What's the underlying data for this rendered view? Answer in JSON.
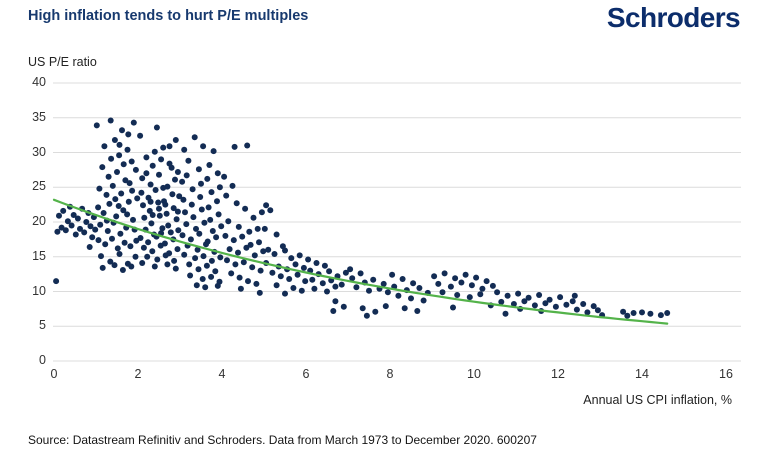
{
  "brand": {
    "logo_text": "Schroders"
  },
  "source_note": "Source: Datastream Refinitiv and Schroders. Data from March 1973 to December 2020. 600207",
  "chart_data": {
    "type": "scatter",
    "title": "High inflation tends to hurt P/E multiples",
    "xlabel": "Annual US CPI inflation, %",
    "ylabel": "US P/E ratio",
    "xlim": [
      0,
      16
    ],
    "ylim": [
      0,
      40
    ],
    "x_ticks": [
      0,
      2,
      4,
      6,
      8,
      10,
      12,
      14,
      16
    ],
    "y_ticks": [
      0,
      5,
      10,
      15,
      20,
      25,
      30,
      35,
      40
    ],
    "grid": "horizontal",
    "grid_color": "#dcdcdc",
    "point_color": "#132c54",
    "trend": {
      "type": "exponential",
      "formula": "y = 23.2 * exp(-0.1 * x)",
      "a": 23.2,
      "b": -0.1,
      "x_start": 0,
      "x_end": 14.6,
      "color": "#54b34a"
    },
    "points": [
      [
        0.05,
        11.5
      ],
      [
        0.08,
        18.6
      ],
      [
        0.12,
        20.9
      ],
      [
        0.18,
        19.2
      ],
      [
        0.22,
        21.6
      ],
      [
        0.28,
        18.8
      ],
      [
        0.33,
        20.1
      ],
      [
        0.38,
        22.2
      ],
      [
        0.42,
        19.5
      ],
      [
        0.47,
        21.0
      ],
      [
        0.52,
        18.2
      ],
      [
        0.57,
        20.5
      ],
      [
        0.62,
        19.0
      ],
      [
        0.67,
        21.9
      ],
      [
        0.72,
        18.5
      ],
      [
        0.77,
        20.0
      ],
      [
        0.82,
        21.3
      ],
      [
        0.87,
        19.4
      ],
      [
        0.91,
        17.8
      ],
      [
        0.95,
        20.7
      ],
      [
        0.98,
        18.9
      ],
      [
        0.85,
        16.4
      ],
      [
        1.02,
        33.9
      ],
      [
        1.35,
        34.6
      ],
      [
        1.62,
        33.2
      ],
      [
        1.9,
        34.3
      ],
      [
        1.2,
        30.9
      ],
      [
        1.45,
        31.8
      ],
      [
        1.55,
        29.6
      ],
      [
        1.75,
        30.4
      ],
      [
        1.85,
        28.7
      ],
      [
        1.15,
        27.9
      ],
      [
        1.3,
        26.5
      ],
      [
        1.5,
        27.2
      ],
      [
        1.7,
        26.0
      ],
      [
        1.95,
        27.5
      ],
      [
        1.08,
        24.8
      ],
      [
        1.25,
        23.9
      ],
      [
        1.4,
        25.2
      ],
      [
        1.6,
        24.1
      ],
      [
        1.8,
        25.6
      ],
      [
        1.98,
        23.4
      ],
      [
        1.05,
        22.1
      ],
      [
        1.18,
        21.3
      ],
      [
        1.32,
        22.6
      ],
      [
        1.48,
        20.8
      ],
      [
        1.65,
        21.7
      ],
      [
        1.78,
        22.9
      ],
      [
        1.88,
        20.3
      ],
      [
        1.1,
        19.6
      ],
      [
        1.28,
        18.7
      ],
      [
        1.42,
        19.9
      ],
      [
        1.58,
        18.3
      ],
      [
        1.72,
        19.2
      ],
      [
        1.92,
        18.9
      ],
      [
        1.06,
        17.4
      ],
      [
        1.22,
        16.8
      ],
      [
        1.38,
        17.6
      ],
      [
        1.52,
        16.2
      ],
      [
        1.68,
        17.0
      ],
      [
        1.82,
        16.5
      ],
      [
        1.96,
        17.3
      ],
      [
        1.12,
        15.1
      ],
      [
        1.34,
        14.3
      ],
      [
        1.56,
        15.4
      ],
      [
        1.76,
        14.0
      ],
      [
        1.94,
        15.0
      ],
      [
        1.16,
        13.4
      ],
      [
        1.44,
        13.8
      ],
      [
        1.64,
        13.1
      ],
      [
        1.84,
        13.6
      ],
      [
        1.26,
        20.2
      ],
      [
        1.54,
        22.3
      ],
      [
        1.74,
        21.1
      ],
      [
        1.86,
        24.5
      ],
      [
        1.46,
        23.3
      ],
      [
        1.66,
        28.3
      ],
      [
        1.36,
        29.1
      ],
      [
        1.56,
        31.1
      ],
      [
        1.77,
        32.6
      ],
      [
        2.05,
        32.4
      ],
      [
        2.45,
        33.6
      ],
      [
        2.6,
        30.7
      ],
      [
        2.9,
        31.8
      ],
      [
        2.2,
        29.3
      ],
      [
        2.35,
        28.1
      ],
      [
        2.55,
        29.0
      ],
      [
        2.75,
        28.4
      ],
      [
        2.95,
        27.2
      ],
      [
        2.1,
        26.3
      ],
      [
        2.3,
        25.4
      ],
      [
        2.5,
        26.8
      ],
      [
        2.7,
        25.1
      ],
      [
        2.88,
        26.1
      ],
      [
        2.08,
        24.2
      ],
      [
        2.25,
        23.5
      ],
      [
        2.42,
        24.6
      ],
      [
        2.62,
        23.0
      ],
      [
        2.82,
        24.0
      ],
      [
        2.98,
        23.7
      ],
      [
        2.12,
        22.4
      ],
      [
        2.28,
        21.6
      ],
      [
        2.48,
        22.8
      ],
      [
        2.68,
        21.2
      ],
      [
        2.85,
        22.0
      ],
      [
        2.15,
        20.6
      ],
      [
        2.32,
        19.8
      ],
      [
        2.52,
        20.9
      ],
      [
        2.72,
        19.5
      ],
      [
        2.92,
        20.4
      ],
      [
        2.18,
        18.9
      ],
      [
        2.38,
        18.2
      ],
      [
        2.58,
        19.1
      ],
      [
        2.78,
        18.5
      ],
      [
        2.96,
        18.8
      ],
      [
        2.06,
        17.7
      ],
      [
        2.24,
        17.1
      ],
      [
        2.44,
        17.9
      ],
      [
        2.64,
        16.9
      ],
      [
        2.84,
        17.5
      ],
      [
        2.14,
        16.3
      ],
      [
        2.34,
        15.8
      ],
      [
        2.54,
        16.6
      ],
      [
        2.74,
        15.5
      ],
      [
        2.94,
        16.1
      ],
      [
        2.22,
        15.0
      ],
      [
        2.46,
        14.6
      ],
      [
        2.66,
        15.2
      ],
      [
        2.86,
        14.4
      ],
      [
        2.1,
        14.1
      ],
      [
        2.4,
        13.6
      ],
      [
        2.7,
        13.9
      ],
      [
        2.9,
        13.3
      ],
      [
        2.5,
        21.9
      ],
      [
        2.3,
        22.9
      ],
      [
        2.6,
        24.9
      ],
      [
        2.8,
        27.8
      ],
      [
        2.2,
        27.0
      ],
      [
        2.4,
        30.1
      ],
      [
        2.75,
        30.9
      ],
      [
        2.55,
        18.4
      ],
      [
        2.35,
        21.0
      ],
      [
        2.65,
        22.5
      ],
      [
        2.95,
        21.5
      ],
      [
        3.35,
        32.2
      ],
      [
        3.55,
        30.9
      ],
      [
        3.8,
        30.2
      ],
      [
        3.1,
        30.4
      ],
      [
        3.2,
        28.8
      ],
      [
        3.45,
        27.6
      ],
      [
        3.7,
        28.2
      ],
      [
        3.9,
        27.0
      ],
      [
        3.05,
        25.8
      ],
      [
        3.3,
        24.7
      ],
      [
        3.5,
        25.5
      ],
      [
        3.75,
        24.3
      ],
      [
        3.95,
        25.0
      ],
      [
        3.08,
        23.2
      ],
      [
        3.28,
        22.5
      ],
      [
        3.48,
        23.6
      ],
      [
        3.68,
        22.1
      ],
      [
        3.88,
        23.0
      ],
      [
        3.12,
        21.4
      ],
      [
        3.32,
        20.7
      ],
      [
        3.52,
        21.8
      ],
      [
        3.72,
        20.3
      ],
      [
        3.92,
        21.1
      ],
      [
        3.15,
        19.7
      ],
      [
        3.38,
        19.0
      ],
      [
        3.58,
        19.9
      ],
      [
        3.78,
        18.7
      ],
      [
        3.98,
        19.4
      ],
      [
        3.06,
        18.1
      ],
      [
        3.26,
        17.5
      ],
      [
        3.46,
        18.3
      ],
      [
        3.66,
        17.2
      ],
      [
        3.86,
        17.8
      ],
      [
        3.18,
        16.6
      ],
      [
        3.42,
        16.0
      ],
      [
        3.62,
        16.8
      ],
      [
        3.82,
        15.7
      ],
      [
        3.1,
        15.3
      ],
      [
        3.36,
        14.8
      ],
      [
        3.56,
        15.1
      ],
      [
        3.76,
        14.4
      ],
      [
        3.96,
        14.9
      ],
      [
        3.22,
        13.9
      ],
      [
        3.44,
        13.2
      ],
      [
        3.64,
        13.7
      ],
      [
        3.84,
        12.9
      ],
      [
        3.24,
        12.3
      ],
      [
        3.54,
        11.8
      ],
      [
        3.74,
        12.1
      ],
      [
        3.94,
        11.4
      ],
      [
        3.4,
        10.9
      ],
      [
        3.6,
        10.6
      ],
      [
        3.9,
        10.8
      ],
      [
        3.16,
        26.7
      ],
      [
        3.65,
        26.2
      ],
      [
        4.3,
        30.8
      ],
      [
        4.6,
        31.0
      ],
      [
        4.05,
        26.5
      ],
      [
        4.25,
        25.2
      ],
      [
        4.1,
        23.8
      ],
      [
        4.35,
        22.7
      ],
      [
        4.55,
        21.9
      ],
      [
        4.75,
        20.6
      ],
      [
        4.95,
        21.4
      ],
      [
        4.15,
        20.1
      ],
      [
        4.4,
        19.3
      ],
      [
        4.65,
        18.6
      ],
      [
        4.85,
        19.0
      ],
      [
        4.08,
        18.0
      ],
      [
        4.28,
        17.4
      ],
      [
        4.48,
        17.9
      ],
      [
        4.68,
        16.7
      ],
      [
        4.88,
        17.1
      ],
      [
        4.18,
        16.1
      ],
      [
        4.38,
        15.6
      ],
      [
        4.58,
        16.3
      ],
      [
        4.78,
        15.2
      ],
      [
        4.98,
        15.8
      ],
      [
        4.12,
        14.5
      ],
      [
        4.32,
        13.9
      ],
      [
        4.52,
        14.2
      ],
      [
        4.72,
        13.5
      ],
      [
        4.92,
        13.0
      ],
      [
        4.22,
        12.6
      ],
      [
        4.42,
        12.0
      ],
      [
        4.62,
        11.5
      ],
      [
        4.82,
        11.1
      ],
      [
        4.45,
        10.4
      ],
      [
        4.9,
        9.8
      ],
      [
        5.05,
        22.4
      ],
      [
        5.15,
        21.7
      ],
      [
        5.02,
        19.0
      ],
      [
        5.3,
        18.2
      ],
      [
        5.45,
        16.5
      ],
      [
        5.1,
        16.0
      ],
      [
        5.25,
        15.4
      ],
      [
        5.5,
        15.9
      ],
      [
        5.65,
        14.8
      ],
      [
        5.85,
        15.2
      ],
      [
        5.05,
        14.1
      ],
      [
        5.35,
        13.6
      ],
      [
        5.55,
        13.2
      ],
      [
        5.75,
        13.9
      ],
      [
        5.95,
        13.4
      ],
      [
        5.2,
        12.7
      ],
      [
        5.4,
        12.2
      ],
      [
        5.6,
        11.8
      ],
      [
        5.8,
        12.4
      ],
      [
        5.98,
        11.5
      ],
      [
        5.3,
        10.9
      ],
      [
        5.7,
        10.5
      ],
      [
        5.9,
        10.1
      ],
      [
        5.5,
        9.7
      ],
      [
        6.05,
        14.6
      ],
      [
        6.25,
        14.1
      ],
      [
        6.45,
        13.7
      ],
      [
        6.1,
        13.0
      ],
      [
        6.3,
        12.5
      ],
      [
        6.55,
        12.9
      ],
      [
        6.75,
        12.2
      ],
      [
        6.95,
        12.7
      ],
      [
        6.15,
        11.7
      ],
      [
        6.4,
        11.2
      ],
      [
        6.6,
        11.6
      ],
      [
        6.85,
        11.0
      ],
      [
        6.2,
        10.4
      ],
      [
        6.5,
        10.0
      ],
      [
        6.7,
        10.7
      ],
      [
        6.9,
        7.8
      ],
      [
        6.65,
        7.2
      ],
      [
        6.7,
        8.6
      ],
      [
        7.05,
        13.2
      ],
      [
        7.3,
        12.6
      ],
      [
        7.1,
        11.9
      ],
      [
        7.4,
        11.3
      ],
      [
        7.6,
        11.7
      ],
      [
        7.85,
        11.1
      ],
      [
        7.2,
        10.6
      ],
      [
        7.5,
        10.1
      ],
      [
        7.75,
        10.4
      ],
      [
        7.95,
        9.9
      ],
      [
        7.35,
        7.6
      ],
      [
        7.65,
        7.1
      ],
      [
        7.9,
        7.9
      ],
      [
        7.45,
        6.5
      ],
      [
        8.05,
        12.4
      ],
      [
        8.3,
        11.8
      ],
      [
        8.55,
        11.2
      ],
      [
        8.1,
        10.7
      ],
      [
        8.4,
        10.2
      ],
      [
        8.7,
        10.5
      ],
      [
        8.9,
        9.8
      ],
      [
        8.2,
        9.4
      ],
      [
        8.5,
        9.0
      ],
      [
        8.8,
        8.7
      ],
      [
        8.35,
        7.6
      ],
      [
        8.65,
        7.2
      ],
      [
        9.05,
        12.2
      ],
      [
        9.3,
        12.6
      ],
      [
        9.55,
        11.9
      ],
      [
        9.8,
        12.4
      ],
      [
        10.05,
        12.0
      ],
      [
        10.3,
        11.5
      ],
      [
        9.15,
        11.1
      ],
      [
        9.45,
        10.7
      ],
      [
        9.7,
        11.3
      ],
      [
        9.95,
        10.9
      ],
      [
        10.2,
        10.4
      ],
      [
        10.45,
        10.8
      ],
      [
        9.25,
        9.9
      ],
      [
        9.6,
        9.5
      ],
      [
        9.9,
        9.2
      ],
      [
        10.15,
        9.6
      ],
      [
        10.4,
        8.0
      ],
      [
        9.5,
        7.7
      ],
      [
        10.55,
        9.9
      ],
      [
        10.8,
        9.4
      ],
      [
        11.05,
        9.7
      ],
      [
        11.3,
        9.1
      ],
      [
        11.55,
        9.5
      ],
      [
        11.8,
        8.8
      ],
      [
        12.05,
        9.2
      ],
      [
        10.65,
        8.5
      ],
      [
        10.95,
        8.2
      ],
      [
        11.2,
        8.6
      ],
      [
        11.45,
        8.0
      ],
      [
        11.7,
        8.3
      ],
      [
        11.95,
        7.8
      ],
      [
        12.2,
        8.1
      ],
      [
        11.1,
        7.5
      ],
      [
        11.6,
        7.2
      ],
      [
        10.75,
        6.8
      ],
      [
        12.35,
        8.6
      ],
      [
        12.6,
        8.2
      ],
      [
        12.85,
        7.9
      ],
      [
        12.45,
        7.4
      ],
      [
        12.7,
        7.0
      ],
      [
        12.95,
        7.3
      ],
      [
        13.05,
        6.6
      ],
      [
        12.4,
        9.4
      ],
      [
        13.55,
        7.1
      ],
      [
        13.8,
        6.9
      ],
      [
        14.0,
        7.0
      ],
      [
        14.2,
        6.8
      ],
      [
        14.45,
        6.6
      ],
      [
        14.6,
        6.9
      ],
      [
        13.65,
        6.5
      ]
    ]
  }
}
